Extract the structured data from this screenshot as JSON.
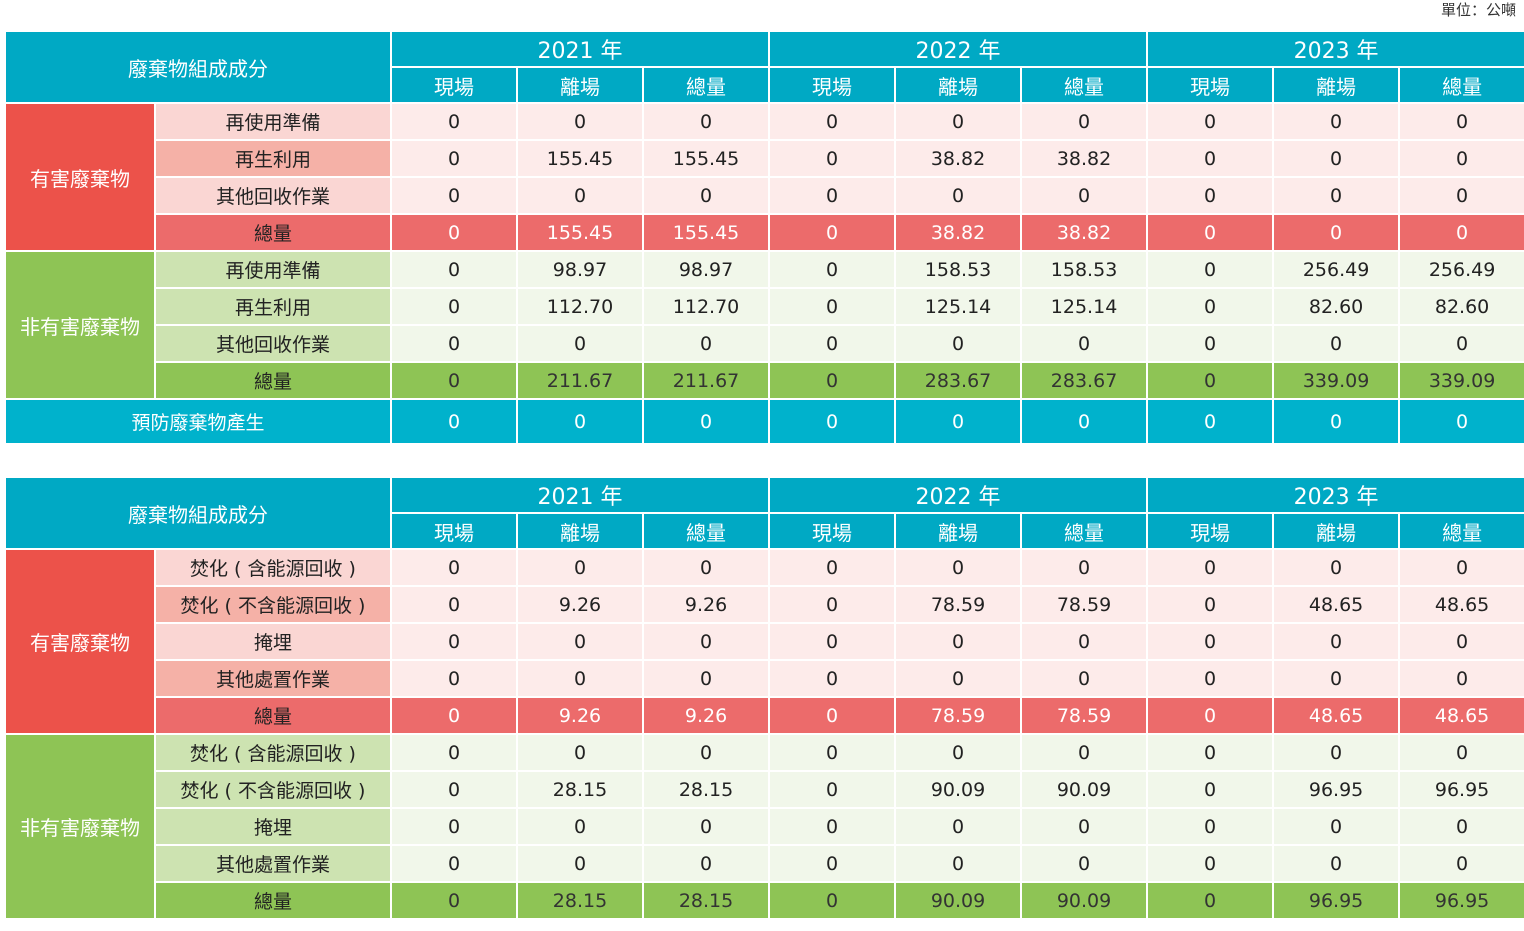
{
  "unit_label": "單位：公噸",
  "years": [
    "2021 年",
    "2022 年",
    "2023 年"
  ],
  "subheaders": [
    "現場",
    "離場",
    "總量"
  ],
  "table1": {
    "header": "廢棄物組成成分",
    "groups": [
      {
        "label": "有害廢棄物",
        "kind": "h",
        "rows": [
          {
            "label": "再使用準備",
            "values": [
              "0",
              "0",
              "0",
              "0",
              "0",
              "0",
              "0",
              "0",
              "0"
            ]
          },
          {
            "label": "再生利用",
            "values": [
              "0",
              "155.45",
              "155.45",
              "0",
              "38.82",
              "38.82",
              "0",
              "0",
              "0"
            ]
          },
          {
            "label": "其他回收作業",
            "values": [
              "0",
              "0",
              "0",
              "0",
              "0",
              "0",
              "0",
              "0",
              "0"
            ]
          }
        ],
        "total": {
          "label": "總量",
          "values": [
            "0",
            "155.45",
            "155.45",
            "0",
            "38.82",
            "38.82",
            "0",
            "0",
            "0"
          ]
        }
      },
      {
        "label": "非有害廢棄物",
        "kind": "n",
        "rows": [
          {
            "label": "再使用準備",
            "values": [
              "0",
              "98.97",
              "98.97",
              "0",
              "158.53",
              "158.53",
              "0",
              "256.49",
              "256.49"
            ]
          },
          {
            "label": "再生利用",
            "values": [
              "0",
              "112.70",
              "112.70",
              "0",
              "125.14",
              "125.14",
              "0",
              "82.60",
              "82.60"
            ]
          },
          {
            "label": "其他回收作業",
            "values": [
              "0",
              "0",
              "0",
              "0",
              "0",
              "0",
              "0",
              "0",
              "0"
            ]
          }
        ],
        "total": {
          "label": "總量",
          "values": [
            "0",
            "211.67",
            "211.67",
            "0",
            "283.67",
            "283.67",
            "0",
            "339.09",
            "339.09"
          ]
        }
      }
    ],
    "prevention": {
      "label": "預防廢棄物產生",
      "values": [
        "0",
        "0",
        "0",
        "0",
        "0",
        "0",
        "0",
        "0",
        "0"
      ]
    }
  },
  "table2": {
    "header": "廢棄物組成成分",
    "groups": [
      {
        "label": "有害廢棄物",
        "kind": "h",
        "rows": [
          {
            "label": "焚化 ( 含能源回收 )",
            "values": [
              "0",
              "0",
              "0",
              "0",
              "0",
              "0",
              "0",
              "0",
              "0"
            ]
          },
          {
            "label": "焚化 ( 不含能源回收 )",
            "values": [
              "0",
              "9.26",
              "9.26",
              "0",
              "78.59",
              "78.59",
              "0",
              "48.65",
              "48.65"
            ]
          },
          {
            "label": "掩埋",
            "values": [
              "0",
              "0",
              "0",
              "0",
              "0",
              "0",
              "0",
              "0",
              "0"
            ]
          },
          {
            "label": "其他處置作業",
            "values": [
              "0",
              "0",
              "0",
              "0",
              "0",
              "0",
              "0",
              "0",
              "0"
            ]
          }
        ],
        "total": {
          "label": "總量",
          "values": [
            "0",
            "9.26",
            "9.26",
            "0",
            "78.59",
            "78.59",
            "0",
            "48.65",
            "48.65"
          ]
        }
      },
      {
        "label": "非有害廢棄物",
        "kind": "n",
        "rows": [
          {
            "label": "焚化 ( 含能源回收 )",
            "values": [
              "0",
              "0",
              "0",
              "0",
              "0",
              "0",
              "0",
              "0",
              "0"
            ]
          },
          {
            "label": "焚化 ( 不含能源回收 )",
            "values": [
              "0",
              "28.15",
              "28.15",
              "0",
              "90.09",
              "90.09",
              "0",
              "96.95",
              "96.95"
            ]
          },
          {
            "label": "掩埋",
            "values": [
              "0",
              "0",
              "0",
              "0",
              "0",
              "0",
              "0",
              "0",
              "0"
            ]
          },
          {
            "label": "其他處置作業",
            "values": [
              "0",
              "0",
              "0",
              "0",
              "0",
              "0",
              "0",
              "0",
              "0"
            ]
          }
        ],
        "total": {
          "label": "總量",
          "values": [
            "0",
            "28.15",
            "28.15",
            "0",
            "90.09",
            "90.09",
            "0",
            "96.95",
            "96.95"
          ]
        }
      }
    ]
  }
}
